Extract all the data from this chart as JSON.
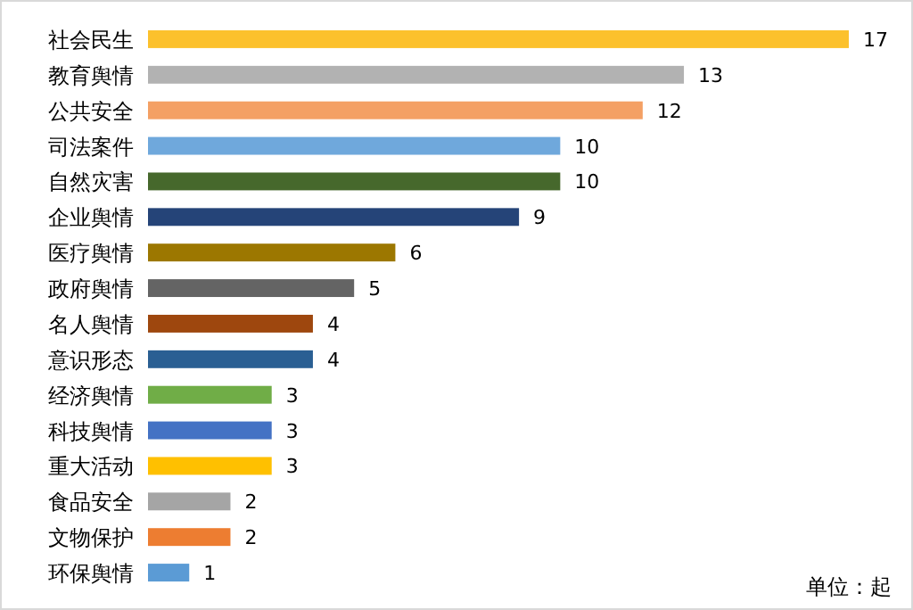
{
  "chart_data": {
    "type": "bar",
    "orientation": "horizontal",
    "data_labels": true,
    "categories": [
      "社会民生",
      "教育舆情",
      "公共安全",
      "司法案件",
      "自然灾害",
      "企业舆情",
      "医疗舆情",
      "政府舆情",
      "名人舆情",
      "意识形态",
      "经济舆情",
      "科技舆情",
      "重大活动",
      "食品安全",
      "文物保护",
      "环保舆情"
    ],
    "values": [
      17,
      13,
      12,
      10,
      10,
      9,
      6,
      5,
      4,
      4,
      3,
      3,
      3,
      2,
      2,
      1
    ],
    "colors": [
      "#fcc12c",
      "#b2b2b2",
      "#f4a064",
      "#6fa8dc",
      "#46682c",
      "#254478",
      "#9c7700",
      "#646464",
      "#9e470e",
      "#2a5f93",
      "#70ad47",
      "#4472c4",
      "#ffc000",
      "#a5a5a5",
      "#ed7d31",
      "#5b9bd5"
    ],
    "annotations": [
      "单位：起"
    ]
  }
}
